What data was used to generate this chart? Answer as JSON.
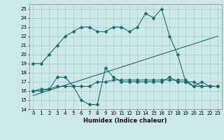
{
  "title": "",
  "xlabel": "Humidex (Indice chaleur)",
  "xlim": [
    -0.5,
    23.5
  ],
  "ylim": [
    14,
    25.5
  ],
  "yticks": [
    14,
    15,
    16,
    17,
    18,
    19,
    20,
    21,
    22,
    23,
    24,
    25
  ],
  "xticks": [
    0,
    1,
    2,
    3,
    4,
    5,
    6,
    7,
    8,
    9,
    10,
    11,
    12,
    13,
    14,
    15,
    16,
    17,
    18,
    19,
    20,
    21,
    22,
    23
  ],
  "background_color": "#cce8e8",
  "grid_color": "#aacccc",
  "line_color": "#1a6b6b",
  "series": [
    {
      "x": [
        0,
        1,
        2,
        3,
        4,
        5,
        6,
        7,
        8,
        9,
        10,
        11,
        12,
        13,
        14,
        15,
        16,
        17,
        18,
        19,
        20,
        21,
        22,
        23
      ],
      "y": [
        19,
        19,
        20,
        21,
        22,
        22.5,
        23,
        23,
        22.5,
        22.5,
        23,
        23,
        22.5,
        23,
        24.5,
        24,
        25,
        22,
        20,
        17,
        17,
        16.5,
        16.5,
        16.5
      ],
      "marker": "D",
      "markersize": 2.5
    },
    {
      "x": [
        0,
        1,
        2,
        3,
        4,
        5,
        6,
        7,
        8,
        9,
        10,
        11,
        12,
        13,
        14,
        15,
        16,
        17,
        18,
        19,
        20,
        21,
        22,
        23
      ],
      "y": [
        16,
        16.2,
        16.2,
        17.5,
        17.5,
        16.5,
        15,
        14.5,
        14.5,
        18.5,
        17.5,
        17,
        17,
        17,
        17,
        17,
        17,
        17.5,
        17,
        17,
        16.5,
        17,
        16.5,
        16.5
      ],
      "marker": "D",
      "markersize": 2.5
    },
    {
      "x": [
        0,
        1,
        2,
        3,
        4,
        5,
        6,
        7,
        8,
        9,
        10,
        11,
        12,
        13,
        14,
        15,
        16,
        17,
        18,
        19,
        20,
        21,
        22,
        23
      ],
      "y": [
        16,
        16,
        16.2,
        16.5,
        16.5,
        16.5,
        16.5,
        16.5,
        17,
        17,
        17.2,
        17.2,
        17.2,
        17.2,
        17.2,
        17.2,
        17.2,
        17.2,
        17.2,
        17.2,
        16.5,
        16.5,
        16.5,
        16.5
      ],
      "marker": "D",
      "markersize": 2.5
    },
    {
      "x": [
        0,
        23
      ],
      "y": [
        15.5,
        22
      ],
      "marker": null,
      "markersize": 0
    }
  ]
}
